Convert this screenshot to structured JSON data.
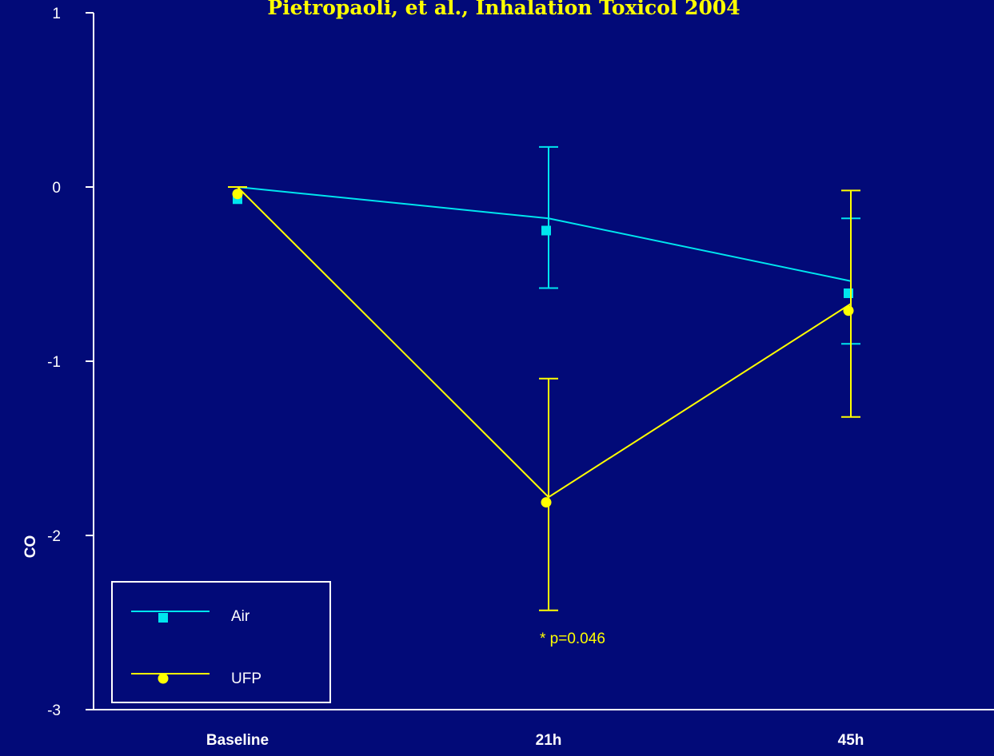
{
  "chart_data": {
    "type": "line",
    "title": "Pietropaoli, et al., Inhalation Toxicol 2004",
    "xlabel": "",
    "ylabel": "CO",
    "categories": [
      "Baseline",
      "21h",
      "45h"
    ],
    "ylim": [
      -3,
      1
    ],
    "yticks": [
      "1",
      "0",
      "-1",
      "-2",
      "-3"
    ],
    "grid": false,
    "legend_position": "bottom-left",
    "series": [
      {
        "name": "Air",
        "color": "#00e5ee",
        "marker": "square",
        "line_values": [
          0,
          -0.18,
          -0.54
        ],
        "values": [
          -0.07,
          -0.25,
          -0.61
        ],
        "error_upper": [
          0,
          0.23,
          -0.18
        ],
        "error_lower": [
          0,
          -0.58,
          -0.9
        ]
      },
      {
        "name": "UFP",
        "color": "#ffff00",
        "marker": "circle",
        "line_values": [
          0,
          -1.78,
          -0.67
        ],
        "values": [
          -0.04,
          -1.81,
          -0.71
        ],
        "error_upper": [
          0,
          -1.1,
          -0.02
        ],
        "error_lower": [
          0,
          -2.43,
          -1.32
        ]
      }
    ],
    "annotations": [
      {
        "text": "* p=0.046",
        "category": "21h",
        "y": -2.62
      }
    ]
  }
}
